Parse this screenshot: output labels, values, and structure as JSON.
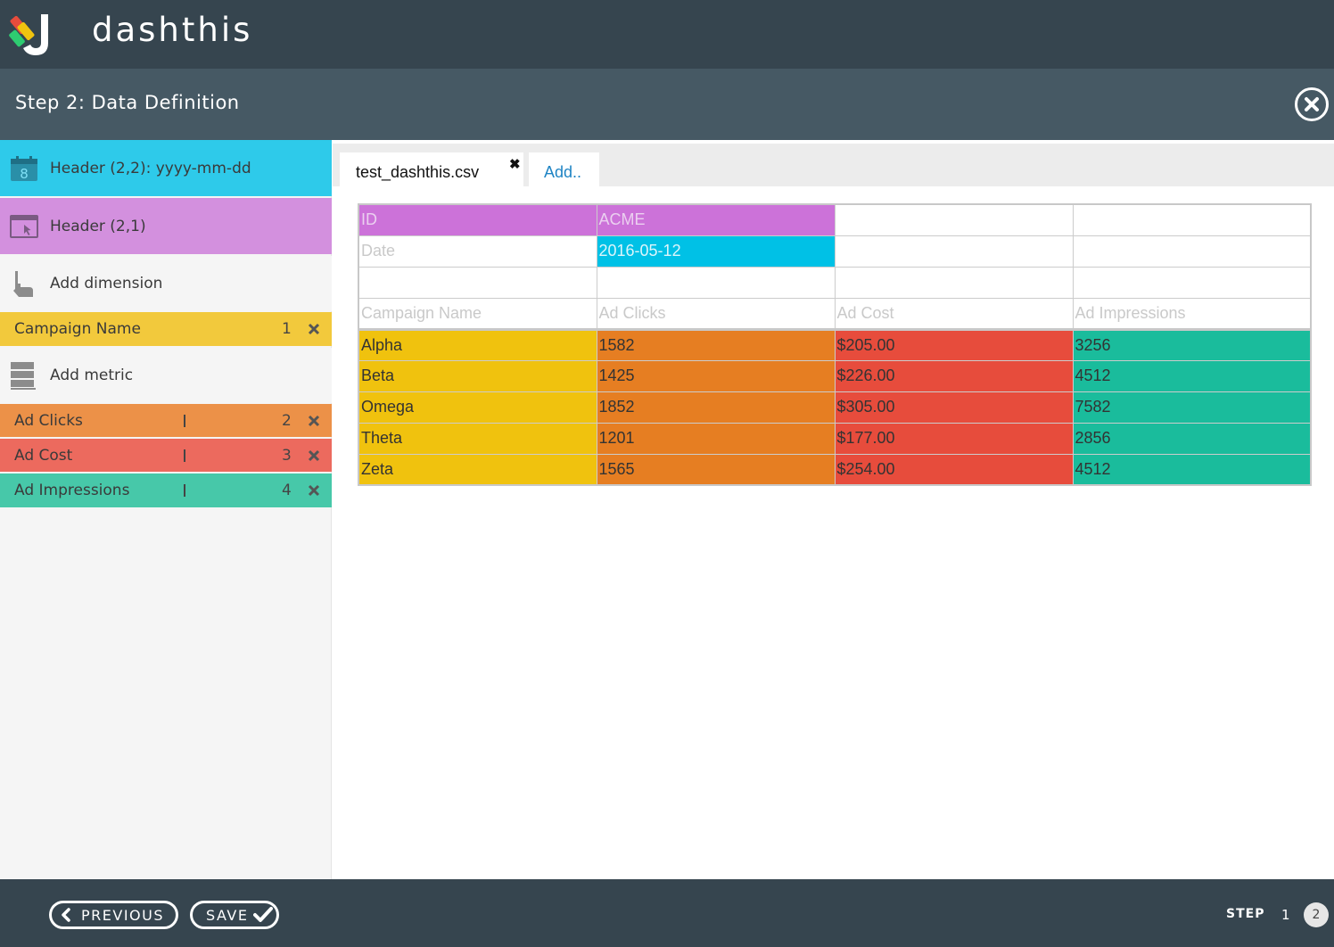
{
  "brand": {
    "name": "dashthis"
  },
  "step_header": {
    "title": "Step 2: Data Definition"
  },
  "sidebar": {
    "header_date": "Header (2,2): yyyy-mm-dd",
    "header_account": "Header (2,1)",
    "add_dimension": "Add dimension",
    "dimensions": [
      {
        "label": "Campaign Name",
        "column": "1"
      }
    ],
    "add_metric": "Add metric",
    "metrics": [
      {
        "label": "Ad Clicks",
        "column": "2"
      },
      {
        "label": "Ad Cost",
        "column": "3"
      },
      {
        "label": "Ad Impressions",
        "column": "4"
      }
    ],
    "colors": {
      "header_date": "#2ecaea",
      "header_account": "#d390de",
      "dimension": "#f2c93c",
      "ad_clicks": "#ec9148",
      "ad_cost": "#ec6a5e",
      "ad_impressions": "#47c8a9"
    }
  },
  "tabs": {
    "file": "test_dashthis.csv",
    "file_close": "✖",
    "add": "Add.."
  },
  "sheet": {
    "meta": [
      [
        "ID",
        "ACME",
        "",
        ""
      ],
      [
        "Date",
        "2016-05-12",
        "",
        ""
      ],
      [
        "",
        "",
        "",
        ""
      ]
    ],
    "headers": [
      "Campaign Name",
      "Ad Clicks",
      "Ad Cost",
      "Ad Impressions"
    ],
    "rows": [
      [
        "Alpha",
        "1582",
        "$205.00",
        "3256"
      ],
      [
        "Beta",
        "1425",
        "$226.00",
        "4512"
      ],
      [
        "Omega",
        "1852",
        "$305.00",
        "7582"
      ],
      [
        "Theta",
        "1201",
        "$177.00",
        "2856"
      ],
      [
        "Zeta",
        "1565",
        "$254.00",
        "4512"
      ]
    ]
  },
  "footer": {
    "previous": "PREVIOUS",
    "save": "SAVE",
    "step_label": "STEP",
    "steps": [
      "1",
      "2"
    ],
    "current_step": "2"
  }
}
